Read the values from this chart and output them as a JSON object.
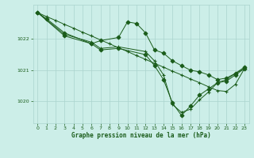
{
  "title": "Graphe pression niveau de la mer (hPa)",
  "background_color": "#cceee8",
  "grid_color": "#aad4ce",
  "line_color": "#1a5c1a",
  "marker_color": "#1a5c1a",
  "xlim": [
    -0.5,
    23.5
  ],
  "ylim": [
    1019.3,
    1023.1
  ],
  "xticks": [
    0,
    1,
    2,
    3,
    4,
    5,
    6,
    7,
    8,
    9,
    10,
    11,
    12,
    13,
    14,
    15,
    16,
    17,
    18,
    19,
    20,
    21,
    22,
    23
  ],
  "yticks": [
    1020,
    1021,
    1022
  ],
  "series": [
    {
      "x": [
        0,
        1,
        2,
        3,
        4,
        5,
        6,
        7,
        8,
        9,
        10,
        11,
        12,
        13,
        14,
        15,
        16,
        17,
        18,
        19,
        20,
        21,
        22,
        23
      ],
      "y": [
        1022.85,
        1022.72,
        1022.6,
        1022.47,
        1022.35,
        1022.22,
        1022.1,
        1021.97,
        1021.85,
        1021.72,
        1021.6,
        1021.47,
        1021.35,
        1021.22,
        1021.1,
        1020.97,
        1020.85,
        1020.72,
        1020.6,
        1020.47,
        1020.35,
        1020.32,
        1020.55,
        1021.05
      ],
      "marker": "+"
    },
    {
      "x": [
        0,
        1,
        3,
        6,
        7,
        9,
        10,
        11,
        12,
        13,
        14,
        15,
        16,
        17,
        18,
        19,
        20,
        21,
        22,
        23
      ],
      "y": [
        1022.85,
        1022.65,
        1022.2,
        1021.85,
        1021.95,
        1022.05,
        1022.55,
        1022.5,
        1022.2,
        1021.65,
        1021.55,
        1021.3,
        1021.15,
        1021.0,
        1020.95,
        1020.85,
        1020.7,
        1020.75,
        1020.9,
        1021.1
      ],
      "marker": "D"
    },
    {
      "x": [
        0,
        3,
        6,
        7,
        9,
        12,
        13,
        14,
        15,
        16,
        17,
        18,
        19,
        20,
        21,
        22,
        23
      ],
      "y": [
        1022.85,
        1022.15,
        1021.9,
        1021.7,
        1021.75,
        1021.6,
        1021.3,
        1020.85,
        1019.9,
        1019.65,
        1019.75,
        1020.05,
        1020.3,
        1020.6,
        1020.7,
        1020.9,
        1021.05
      ],
      "marker": "+"
    },
    {
      "x": [
        0,
        3,
        6,
        7,
        9,
        12,
        13,
        14,
        15,
        16,
        17,
        18,
        19,
        20,
        21,
        22,
        23
      ],
      "y": [
        1022.85,
        1022.1,
        1021.85,
        1021.65,
        1021.7,
        1021.5,
        1021.15,
        1020.7,
        1019.95,
        1019.55,
        1019.85,
        1020.2,
        1020.4,
        1020.6,
        1020.65,
        1020.85,
        1021.05
      ],
      "marker": "D"
    }
  ]
}
